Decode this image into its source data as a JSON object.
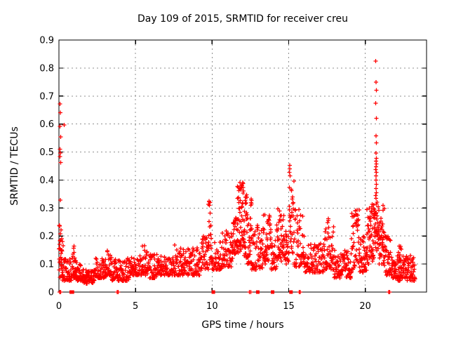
{
  "chart_data": {
    "type": "scatter",
    "title": "Day 109 of 2015, SRMTID for receiver creu",
    "xlabel": "GPS time / hours",
    "ylabel": "SRMTID / TECUs",
    "xlim": [
      0,
      24
    ],
    "ylim": [
      0,
      0.9
    ],
    "grid": true,
    "legend": "none",
    "marker": {
      "shape": "plus",
      "size": 7,
      "color": "#ff0000"
    },
    "axis_color": "#000000",
    "grid_color": "#8f8f8f",
    "background_color": "#ffffff",
    "xticks": [
      {
        "v": 0,
        "label": "0"
      },
      {
        "v": 5,
        "label": "5"
      },
      {
        "v": 10,
        "label": "10"
      },
      {
        "v": 15,
        "label": "15"
      },
      {
        "v": 20,
        "label": "20"
      }
    ],
    "yticks": [
      {
        "v": 0,
        "label": "0"
      },
      {
        "v": 0.1,
        "label": "0.1"
      },
      {
        "v": 0.2,
        "label": "0.2"
      },
      {
        "v": 0.3,
        "label": "0.3"
      },
      {
        "v": 0.4,
        "label": "0.4"
      },
      {
        "v": 0.5,
        "label": "0.5"
      },
      {
        "v": 0.6,
        "label": "0.6"
      },
      {
        "v": 0.7,
        "label": "0.7"
      },
      {
        "v": 0.8,
        "label": "0.8"
      },
      {
        "v": 0.9,
        "label": "0.9"
      }
    ],
    "cluster_segments": [
      [
        0.0,
        0.1,
        12,
        0.05,
        0.24,
        1.2
      ],
      [
        0.1,
        0.35,
        25,
        0.04,
        0.16,
        1.5
      ],
      [
        0.35,
        0.9,
        40,
        0.04,
        0.12,
        1.5
      ],
      [
        0.9,
        1.15,
        30,
        0.05,
        0.17,
        1.8
      ],
      [
        1.15,
        1.6,
        40,
        0.04,
        0.1,
        1.5
      ],
      [
        1.6,
        2.4,
        70,
        0.03,
        0.08,
        1.3
      ],
      [
        2.4,
        3.1,
        55,
        0.05,
        0.12,
        1.6
      ],
      [
        3.1,
        3.45,
        30,
        0.06,
        0.15,
        1.8
      ],
      [
        3.45,
        4.6,
        85,
        0.04,
        0.12,
        1.6
      ],
      [
        4.6,
        5.4,
        60,
        0.06,
        0.13,
        1.6
      ],
      [
        5.4,
        5.8,
        30,
        0.06,
        0.17,
        1.8
      ],
      [
        5.8,
        6.5,
        50,
        0.05,
        0.14,
        1.7
      ],
      [
        6.5,
        7.5,
        70,
        0.06,
        0.13,
        1.6
      ],
      [
        7.5,
        8.2,
        55,
        0.06,
        0.17,
        1.8
      ],
      [
        8.2,
        9.3,
        80,
        0.06,
        0.16,
        1.6
      ],
      [
        9.3,
        9.75,
        35,
        0.08,
        0.2,
        1.5
      ],
      [
        9.75,
        9.95,
        22,
        0.1,
        0.33,
        1.1
      ],
      [
        9.95,
        10.6,
        45,
        0.08,
        0.18,
        1.5
      ],
      [
        10.6,
        11.3,
        55,
        0.09,
        0.22,
        1.5
      ],
      [
        11.3,
        11.65,
        35,
        0.12,
        0.28,
        1.2
      ],
      [
        11.65,
        12.05,
        55,
        0.13,
        0.4,
        1.3
      ],
      [
        12.05,
        12.3,
        30,
        0.12,
        0.35,
        1.3
      ],
      [
        12.3,
        12.6,
        30,
        0.1,
        0.28,
        1.4
      ],
      [
        12.6,
        13.3,
        55,
        0.08,
        0.24,
        1.5
      ],
      [
        13.3,
        13.85,
        50,
        0.1,
        0.29,
        1.3
      ],
      [
        13.85,
        14.2,
        28,
        0.08,
        0.2,
        1.5
      ],
      [
        14.2,
        14.7,
        45,
        0.11,
        0.3,
        1.3
      ],
      [
        14.7,
        15.0,
        25,
        0.1,
        0.22,
        1.5
      ],
      [
        15.0,
        15.35,
        32,
        0.12,
        0.4,
        1.1
      ],
      [
        15.35,
        16.05,
        55,
        0.09,
        0.3,
        1.5
      ],
      [
        16.05,
        17.3,
        90,
        0.07,
        0.18,
        1.6
      ],
      [
        17.3,
        17.95,
        55,
        0.08,
        0.27,
        1.5
      ],
      [
        17.95,
        19.1,
        85,
        0.05,
        0.15,
        1.5
      ],
      [
        19.1,
        19.65,
        50,
        0.08,
        0.3,
        1.4
      ],
      [
        19.65,
        20.1,
        40,
        0.07,
        0.2,
        1.5
      ],
      [
        20.1,
        20.6,
        60,
        0.1,
        0.32,
        1.3
      ],
      [
        20.6,
        20.85,
        30,
        0.14,
        0.33,
        1.1
      ],
      [
        20.85,
        21.25,
        45,
        0.1,
        0.31,
        1.3
      ],
      [
        21.25,
        21.7,
        40,
        0.06,
        0.2,
        1.4
      ],
      [
        21.7,
        21.95,
        20,
        0.05,
        0.13,
        1.4
      ],
      [
        22.15,
        22.35,
        10,
        0.1,
        0.18,
        1.2
      ],
      [
        21.95,
        23.25,
        110,
        0.04,
        0.13,
        1.5
      ]
    ],
    "outlier_points": [
      [
        0.07,
        0.672
      ],
      [
        0.1,
        0.641
      ],
      [
        0.35,
        0.597
      ],
      [
        0.06,
        0.592
      ],
      [
        0.12,
        0.554
      ],
      [
        0.08,
        0.51
      ],
      [
        0.1,
        0.497
      ],
      [
        0.07,
        0.484
      ],
      [
        0.12,
        0.462
      ],
      [
        0.1,
        0.328
      ],
      [
        0.05,
        0.236
      ],
      [
        0.14,
        0.222
      ],
      [
        0.09,
        0.208
      ],
      [
        0.18,
        0.19
      ],
      [
        0.22,
        0.18
      ],
      [
        0.28,
        0.165
      ],
      [
        0.05,
        0.155
      ],
      [
        0.16,
        0.148
      ],
      [
        12.54,
        0.332
      ],
      [
        12.57,
        0.327
      ],
      [
        12.55,
        0.32
      ],
      [
        12.58,
        0.314
      ],
      [
        12.53,
        0.31
      ],
      [
        15.06,
        0.452
      ],
      [
        15.08,
        0.44
      ],
      [
        15.05,
        0.428
      ],
      [
        15.09,
        0.415
      ],
      [
        20.68,
        0.825
      ],
      [
        20.7,
        0.75
      ],
      [
        20.72,
        0.721
      ],
      [
        20.69,
        0.675
      ],
      [
        20.72,
        0.621
      ],
      [
        20.7,
        0.558
      ],
      [
        20.73,
        0.533
      ],
      [
        20.7,
        0.497
      ],
      [
        20.72,
        0.478
      ],
      [
        20.7,
        0.468
      ],
      [
        20.73,
        0.458
      ],
      [
        20.71,
        0.448
      ],
      [
        20.69,
        0.438
      ],
      [
        20.72,
        0.428
      ],
      [
        20.7,
        0.415
      ],
      [
        20.71,
        0.4
      ],
      [
        20.73,
        0.385
      ],
      [
        20.7,
        0.37
      ],
      [
        20.72,
        0.355
      ],
      [
        20.69,
        0.345
      ],
      [
        20.71,
        0.335
      ]
    ],
    "zero_plus_points": [
      0.05,
      0.12,
      3.8,
      3.88,
      12.44,
      12.52,
      15.68,
      15.76,
      21.52,
      21.6
    ],
    "zero_square_points": [
      0.8,
      0.88,
      10.08,
      12.98,
      13.95,
      15.15
    ]
  }
}
